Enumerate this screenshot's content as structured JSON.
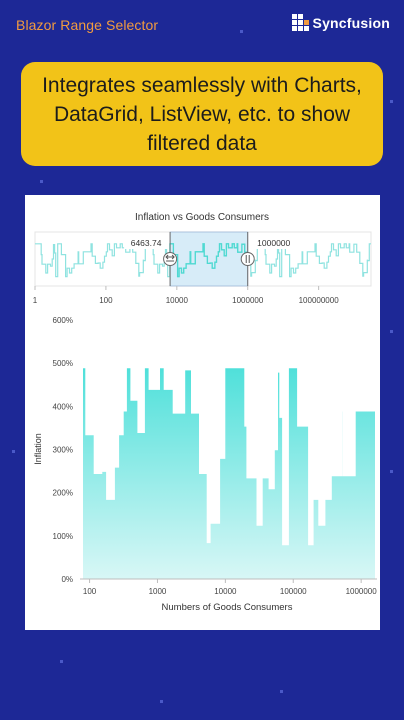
{
  "app": {
    "title": "Blazor Range Selector",
    "brand": "Syncfusion",
    "brand_icon": "syncfusion-logo-icon"
  },
  "callout": {
    "text": "Integrates seamlessly with Charts, DataGrid, ListView, etc. to show filtered data"
  },
  "colors": {
    "background": "#1d2896",
    "accent_orange": "#f29b3f",
    "callout_yellow": "#f2c318",
    "series_fill": "#4fe0da",
    "selection_fill": "#d7ecf8"
  },
  "range_selector": {
    "title": "Inflation vs Goods Consumers",
    "start_label": "6463.74",
    "end_label": "1000000",
    "start_value": 6463.74,
    "end_value": 1000000,
    "x_min": 1,
    "x_max": 3000000000,
    "x_scale": "log",
    "tick_labels": [
      "1",
      "100",
      "10000",
      "1000000",
      "100000000"
    ],
    "tick_values": [
      1,
      100,
      10000,
      1000000,
      100000000
    ]
  },
  "chart_data": {
    "type": "area",
    "step": true,
    "x_scale": "log",
    "xlim": [
      80,
      1600000
    ],
    "ylim": [
      0,
      600
    ],
    "xlabel": "Numbers of Goods Consumers",
    "ylabel": "Inflation",
    "x_tick_labels": [
      "100",
      "1000",
      "10000",
      "100000",
      "1000000"
    ],
    "x_tick_values": [
      100,
      1000,
      10000,
      100000,
      1000000
    ],
    "y_tick_labels": [
      "0%",
      "100%",
      "200%",
      "300%",
      "400%",
      "500%",
      "600%"
    ],
    "y_tick_values": [
      0,
      100,
      200,
      300,
      400,
      500,
      600
    ],
    "grid": false,
    "x": [
      80,
      89,
      118,
      150,
      180,
      230,
      265,
      310,
      345,
      410,
      520,
      635,
      760,
      890,
      1060,
      1270,
      1630,
      1720,
      1940,
      2490,
      2800,
      3200,
      3650,
      4200,
      4800,
      5460,
      5890,
      7000,
      8130,
      8400,
      9700,
      10300,
      12000,
      14700,
      19500,
      21000,
      25500,
      27000,
      29500,
      34500,
      38000,
      44500,
      52000,
      58000,
      64000,
      70500,
      84000,
      98000,
      117000,
      146000,
      170000,
      194000,
      219000,
      240000,
      290000,
      330000,
      360000,
      426000,
      510000,
      540000,
      690000,
      810000,
      940000,
      1000000,
      1140000,
      1380000,
      1600000
    ],
    "y": [
      490,
      335,
      245,
      250,
      185,
      260,
      335,
      390,
      490,
      415,
      340,
      490,
      440,
      440,
      490,
      440,
      490,
      385,
      385,
      485,
      485,
      385,
      385,
      245,
      245,
      85,
      130,
      130,
      285,
      280,
      490,
      490,
      490,
      490,
      355,
      235,
      235,
      235,
      125,
      235,
      235,
      210,
      300,
      480,
      375,
      80,
      490,
      490,
      355,
      355,
      80,
      185,
      185,
      125,
      185,
      185,
      240,
      240,
      390,
      240,
      240,
      390,
      390,
      390,
      390,
      390,
      390
    ]
  }
}
